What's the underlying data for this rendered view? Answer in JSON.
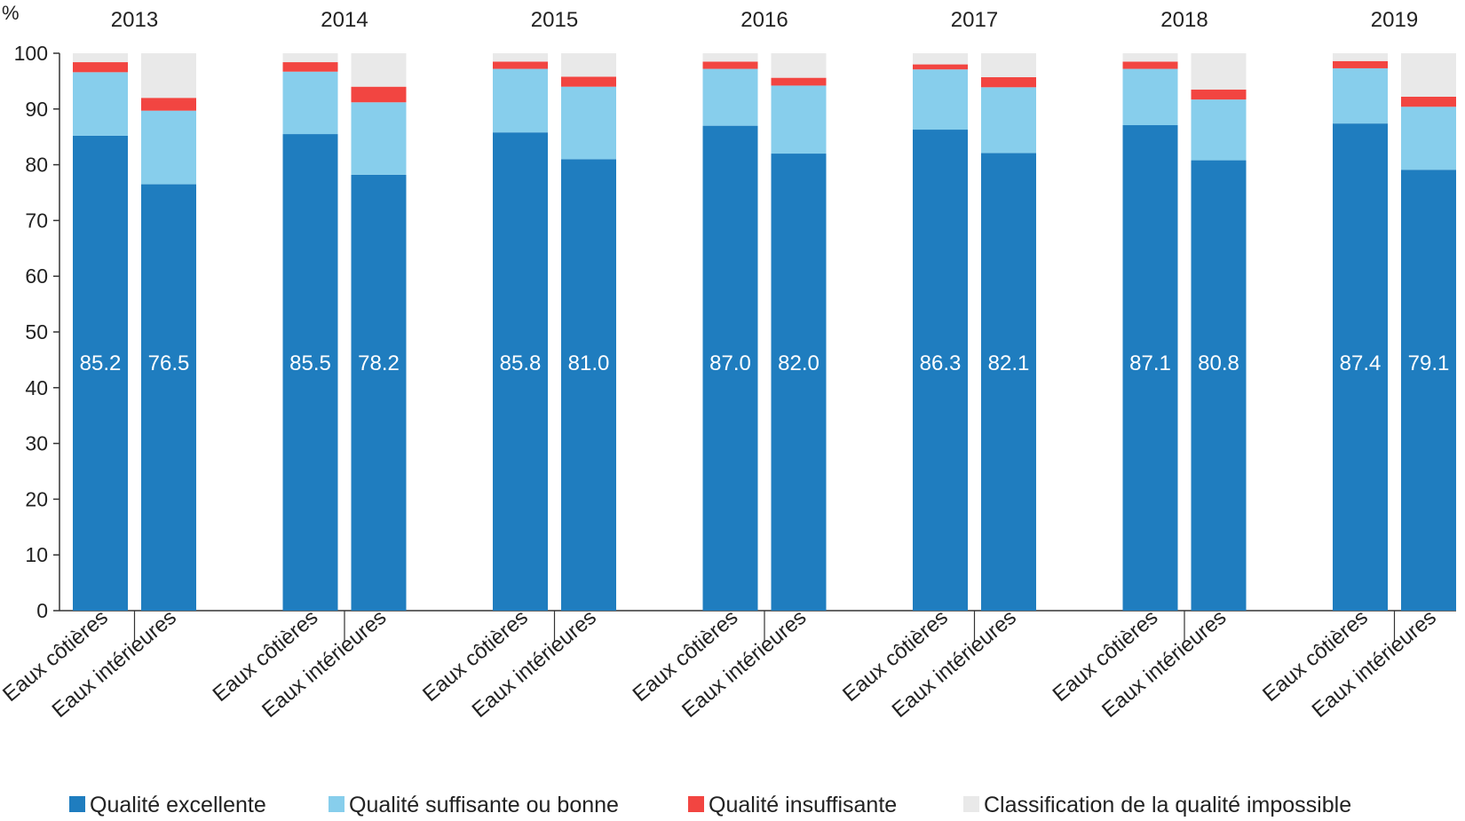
{
  "chart_data": {
    "type": "bar",
    "stacked": true,
    "ylabel": "%",
    "ylim": [
      0,
      100
    ],
    "yticks": [
      0,
      10,
      20,
      30,
      40,
      50,
      60,
      70,
      80,
      90,
      100
    ],
    "grid": false,
    "legend_position": "bottom",
    "groups": [
      "2013",
      "2014",
      "2015",
      "2016",
      "2017",
      "2018",
      "2019"
    ],
    "subcategories": [
      "Eaux côtières",
      "Eaux intérieures"
    ],
    "series": [
      {
        "name": "Qualité excellente",
        "color": "#1f7dbf",
        "values": [
          [
            85.2,
            76.5
          ],
          [
            85.5,
            78.2
          ],
          [
            85.8,
            81.0
          ],
          [
            87.0,
            82.0
          ],
          [
            86.3,
            82.1
          ],
          [
            87.1,
            80.8
          ],
          [
            87.4,
            79.1
          ]
        ],
        "labels": [
          [
            "85.2",
            "76.5"
          ],
          [
            "85.5",
            "78.2"
          ],
          [
            "85.8",
            "81.0"
          ],
          [
            "87.0",
            "82.0"
          ],
          [
            "86.3",
            "82.1"
          ],
          [
            "87.1",
            "80.8"
          ],
          [
            "87.4",
            "79.1"
          ]
        ]
      },
      {
        "name": "Qualité suffisante ou bonne",
        "color": "#87ceec",
        "values": [
          [
            11.4,
            13.2
          ],
          [
            11.2,
            13.0
          ],
          [
            11.4,
            13.0
          ],
          [
            10.2,
            12.2
          ],
          [
            10.8,
            11.8
          ],
          [
            10.1,
            10.9
          ],
          [
            9.9,
            11.3
          ]
        ]
      },
      {
        "name": "Qualité insuffisante",
        "color": "#f24541",
        "values": [
          [
            1.8,
            2.3
          ],
          [
            1.7,
            2.8
          ],
          [
            1.3,
            1.8
          ],
          [
            1.3,
            1.4
          ],
          [
            0.9,
            1.8
          ],
          [
            1.3,
            1.8
          ],
          [
            1.3,
            1.8
          ]
        ]
      },
      {
        "name": "Classification de la qualité impossible",
        "color": "#e9e9e9",
        "values": [
          [
            1.6,
            8.0
          ],
          [
            1.6,
            6.0
          ],
          [
            1.5,
            4.2
          ],
          [
            1.5,
            4.4
          ],
          [
            2.0,
            4.3
          ],
          [
            1.5,
            6.5
          ],
          [
            1.4,
            7.8
          ]
        ]
      }
    ]
  }
}
